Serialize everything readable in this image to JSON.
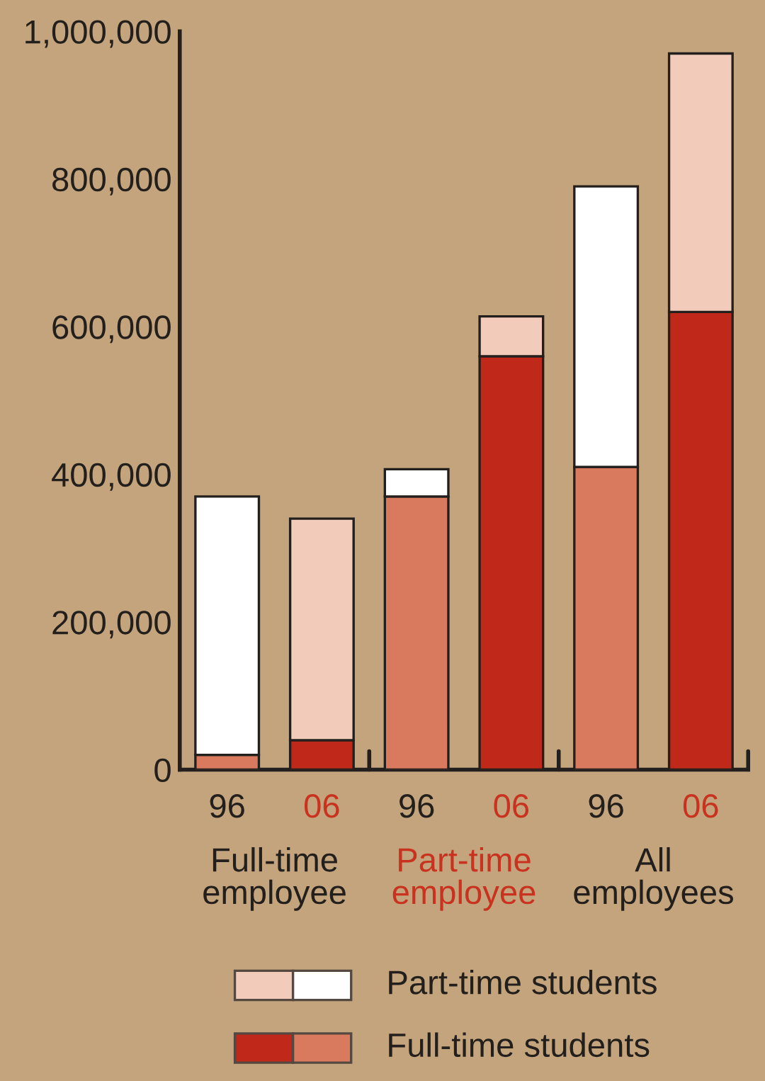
{
  "chart_data": {
    "type": "bar",
    "stacked": true,
    "categories": [
      "96",
      "06",
      "96",
      "06",
      "96",
      "06"
    ],
    "series": [
      {
        "name": "Full-time students",
        "colors": [
          "#d97a5f",
          "#c0291a",
          "#d97a5f",
          "#c0291a",
          "#d97a5f",
          "#c0291a"
        ],
        "values": [
          20000,
          40000,
          370000,
          560000,
          410000,
          620000
        ]
      },
      {
        "name": "Part-time students",
        "colors": [
          "#ffffff",
          "#f2cbbb",
          "#ffffff",
          "#f2cbbb",
          "#ffffff",
          "#f2cbbb"
        ],
        "values": [
          350000,
          300000,
          37000,
          54000,
          380000,
          350000
        ]
      }
    ],
    "ylim": [
      0,
      1000000
    ],
    "yticks": [
      0,
      {
        "value": 200000,
        "label": "200,000"
      },
      {
        "value": 400000,
        "label": "400,000"
      },
      {
        "value": 600000,
        "label": "600,000"
      },
      {
        "value": 800000,
        "label": "800,000"
      },
      {
        "value": 1000000,
        "label": "1,000,000"
      }
    ],
    "annotations": [
      "Full-time\nemployee",
      "Part-time\nemployee",
      "All\nemployees"
    ],
    "legend": "bottom",
    "grid": false
  }
}
